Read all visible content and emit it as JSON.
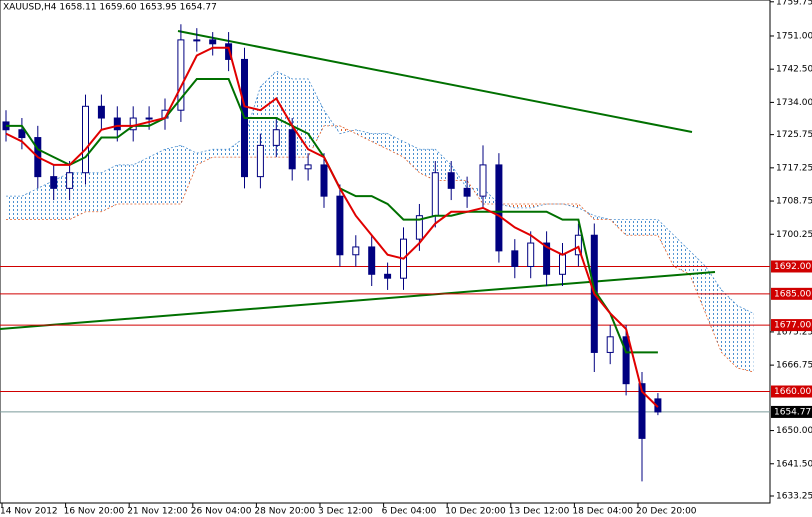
{
  "chart_data": {
    "type": "candlestick",
    "title": "XAUUSD,H4 1658.11 1659.60 1653.95 1654.77",
    "categories": [
      "14 Nov 2012",
      null,
      null,
      null,
      "16 Nov 20:00",
      null,
      null,
      null,
      "21 Nov 12:00",
      null,
      null,
      null,
      "26 Nov 04:00",
      null,
      null,
      null,
      "28 Nov 20:00",
      null,
      null,
      null,
      "3 Dec 12:00",
      null,
      null,
      null,
      "6 Dec 04:00",
      null,
      null,
      null,
      "10 Dec 20:00",
      null,
      null,
      null,
      "13 Dec 12:00",
      null,
      null,
      null,
      "18 Dec 04:00",
      null,
      null,
      null,
      "20 Dec 20:00",
      null,
      null,
      null,
      null,
      null,
      null,
      null
    ],
    "open": [
      1729,
      1727,
      1725,
      1715,
      1712,
      1716,
      1733,
      1730,
      1727,
      1730,
      1730,
      1732,
      1750,
      1750,
      1749,
      1745,
      1715,
      1723,
      1727,
      1717,
      1718,
      1710,
      1695,
      1697,
      1690,
      1689,
      1699,
      1705,
      1716,
      1712,
      1710,
      1718,
      1696,
      1692,
      1698,
      1690,
      1695,
      1700,
      1670,
      1674,
      1662,
      1658.11,
      null,
      null,
      null,
      null,
      null,
      null
    ],
    "high": [
      1732,
      1730,
      1728,
      1718,
      1719,
      1736,
      1736,
      1733,
      1733,
      1733,
      1735,
      1754,
      1753,
      1752,
      1752,
      1748,
      1726,
      1730,
      1730,
      1721,
      1721,
      1713,
      1700,
      1700,
      1693,
      1702,
      1708,
      1719,
      1719,
      1715,
      1723,
      1721,
      1699,
      1701,
      1701,
      1698,
      1703,
      1703,
      1677,
      1677,
      1665,
      1659.6,
      null,
      null,
      null,
      null,
      null,
      null
    ],
    "low": [
      1724,
      1722,
      1712,
      1709,
      1709,
      1713,
      1727,
      1724,
      1724,
      1727,
      1727,
      1729,
      1747,
      1746,
      1742,
      1712,
      1712,
      1720,
      1714,
      1714,
      1707,
      1692,
      1692,
      1687,
      1686,
      1686,
      1696,
      1702,
      1709,
      1707,
      1707,
      1693,
      1689,
      1689,
      1687,
      1687,
      1692,
      1665,
      1667,
      1659,
      1637,
      1653.95,
      null,
      null,
      null,
      null,
      null,
      null
    ],
    "close": [
      1727,
      1725,
      1715,
      1712,
      1716,
      1733,
      1730,
      1727,
      1730,
      1730,
      1732,
      1750,
      1750,
      1749,
      1745,
      1715,
      1723,
      1727,
      1717,
      1718,
      1710,
      1695,
      1697,
      1690,
      1689,
      1699,
      1705,
      1716,
      1712,
      1710,
      1718,
      1696,
      1692,
      1698,
      1690,
      1695,
      1700,
      1670,
      1674,
      1662,
      1648,
      1654.77,
      null,
      null,
      null,
      null,
      null,
      null
    ],
    "candle_color": "#000080",
    "tenkan": {
      "color": "#e00000",
      "values": [
        1726,
        1724,
        1720,
        1718,
        1718,
        1722,
        1727,
        1728,
        1728,
        1729,
        1730,
        1738,
        1746,
        1748,
        1748,
        1733,
        1732,
        1735,
        1728,
        1722,
        1720,
        1712,
        1705,
        1700,
        1695,
        1694,
        1698,
        1703,
        1706,
        1706,
        1707,
        1705,
        1702,
        1700,
        1697,
        1695,
        1697,
        1685,
        1680,
        1676,
        1660,
        1656,
        null,
        null,
        null,
        null,
        null,
        null
      ]
    },
    "kijun": {
      "color": "#007000",
      "values": [
        1728,
        1728,
        1722,
        1720,
        1718,
        1720,
        1725,
        1725,
        1728,
        1728,
        1730,
        1735,
        1740,
        1740,
        1740,
        1730,
        1730,
        1730,
        1728,
        1726,
        1720,
        1712,
        1710,
        1710,
        1708,
        1704,
        1704,
        1705,
        1705,
        1706,
        1706,
        1706,
        1706,
        1706,
        1706,
        1704,
        1704,
        1686,
        1680,
        1670,
        1670,
        1670,
        null,
        null,
        null,
        null,
        null,
        null
      ]
    },
    "span_a": {
      "color": "#4a8fd0",
      "values": [
        1710,
        1710,
        1712,
        1714,
        1716,
        1716,
        1716,
        1718,
        1718,
        1720,
        1722,
        1723,
        1721,
        1722,
        1722,
        1725,
        1738,
        1742,
        1740,
        1740,
        1732,
        1726,
        1727,
        1726,
        1726,
        1724,
        1722,
        1722,
        1718,
        1712,
        1712,
        1708,
        1707,
        1707,
        1708,
        1708,
        1707,
        1705,
        1704,
        1704,
        1704,
        1704,
        1700,
        1696,
        1692,
        1686,
        1682,
        1680
      ]
    },
    "span_b": {
      "color": "#e0602a",
      "values": [
        1704,
        1704,
        1704,
        1704,
        1704,
        1706,
        1706,
        1708,
        1708,
        1708,
        1708,
        1708,
        1718,
        1720,
        1720,
        1720,
        1720,
        1720,
        1720,
        1720,
        1728,
        1728,
        1726,
        1724,
        1722,
        1720,
        1716,
        1714,
        1714,
        1714,
        1708,
        1708,
        1708,
        1708,
        1708,
        1708,
        1708,
        1704,
        1704,
        1700,
        1700,
        1700,
        1692,
        1690,
        1680,
        1670,
        1666,
        1665
      ]
    },
    "levels": [
      {
        "value": 1692,
        "label": "1692.00"
      },
      {
        "value": 1685,
        "label": "1685.00"
      },
      {
        "value": 1677,
        "label": "1677.00"
      },
      {
        "value": 1660,
        "label": "1660.00"
      }
    ],
    "level_color": "#d00000",
    "last_price": {
      "value": 1654.77,
      "label": "1654.77"
    },
    "ylim": [
      1631.46,
      1760.21
    ],
    "yticks": [
      {
        "value": 1759.75,
        "label": "1759.75"
      },
      {
        "value": 1751,
        "label": "1751.00"
      },
      {
        "value": 1742.5,
        "label": "1742.50"
      },
      {
        "value": 1734,
        "label": "1734.00"
      },
      {
        "value": 1725.75,
        "label": "1725.75"
      },
      {
        "value": 1717.25,
        "label": "1717.25"
      },
      {
        "value": 1708.75,
        "label": "1708.75"
      },
      {
        "value": 1700.25,
        "label": "1700.25"
      },
      {
        "value": 1675.25,
        "label": "1675.25"
      },
      {
        "value": 1666.75,
        "label": "1666.75"
      },
      {
        "value": 1650,
        "label": "1650.00"
      },
      {
        "value": 1641.5,
        "label": "1641.50"
      },
      {
        "value": 1633.25,
        "label": "1633.25"
      }
    ]
  }
}
